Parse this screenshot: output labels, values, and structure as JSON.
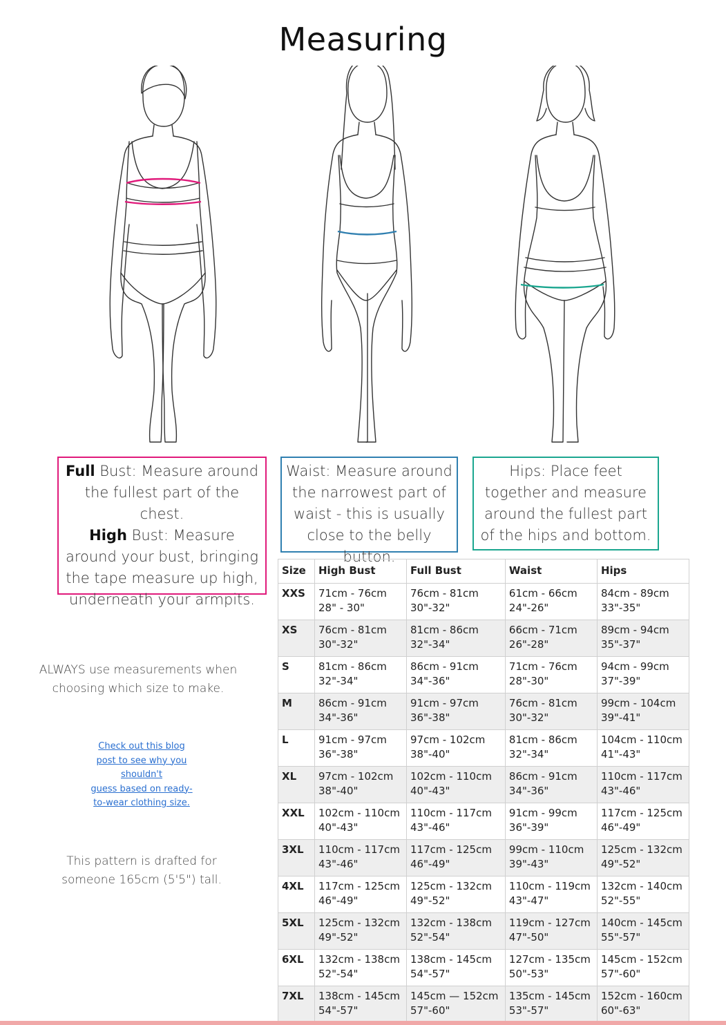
{
  "title": "Measuring",
  "callouts": {
    "bust": {
      "full_bold": "Full",
      "full_text": " Bust: Measure around the fullest part of the chest.",
      "high_bold": "High",
      "high_text": " Bust: Measure around your bust, bringing the tape measure up high, underneath your armpits."
    },
    "waist": "Waist: Measure around the narrowest part of waist - this is usually close to the belly button.",
    "hips": "Hips: Place feet together and measure around the fullest part of the hips and bottom."
  },
  "notes": {
    "always": "ALWAYS use measurements when choosing which size to make.",
    "link_lines": [
      "Check out this blog",
      "post to see why you",
      "shouldn't",
      "guess based on ready-",
      "to-wear clothing size."
    ],
    "drafted": "This pattern is drafted for someone 165cm (5'5\") tall."
  },
  "colors": {
    "bust": "#e0197a",
    "waist": "#2f7fb0",
    "hips": "#1aa68f"
  },
  "table": {
    "headers": [
      "Size",
      "High Bust",
      "Full Bust",
      "Waist",
      "Hips"
    ],
    "rows": [
      {
        "size": "XXS",
        "high_cm": "71cm - 76cm",
        "high_in": "28\" - 30\"",
        "full_cm": "76cm - 81cm",
        "full_in": "30\"-32\"",
        "waist_cm": "61cm - 66cm",
        "waist_in": "24\"-26\"",
        "hips_cm": "84cm - 89cm",
        "hips_in": "33\"-35\""
      },
      {
        "size": "XS",
        "high_cm": "76cm - 81cm",
        "high_in": "30\"-32\"",
        "full_cm": "81cm - 86cm",
        "full_in": "32\"-34\"",
        "waist_cm": "66cm - 71cm",
        "waist_in": "26\"-28\"",
        "hips_cm": "89cm - 94cm",
        "hips_in": "35\"-37\""
      },
      {
        "size": "S",
        "high_cm": "81cm - 86cm",
        "high_in": "32\"-34\"",
        "full_cm": "86cm - 91cm",
        "full_in": "34\"-36\"",
        "waist_cm": "71cm - 76cm",
        "waist_in": "28\"-30\"",
        "hips_cm": "94cm - 99cm",
        "hips_in": "37\"-39\""
      },
      {
        "size": "M",
        "high_cm": "86cm - 91cm",
        "high_in": "34\"-36\"",
        "full_cm": "91cm - 97cm",
        "full_in": "36\"-38\"",
        "waist_cm": "76cm - 81cm",
        "waist_in": "30\"-32\"",
        "hips_cm": "99cm - 104cm",
        "hips_in": "39\"-41\""
      },
      {
        "size": "L",
        "high_cm": "91cm - 97cm",
        "high_in": "36\"-38\"",
        "full_cm": "97cm - 102cm",
        "full_in": "38\"-40\"",
        "waist_cm": "81cm - 86cm",
        "waist_in": "32\"-34\"",
        "hips_cm": "104cm - 110cm",
        "hips_in": "41\"-43\""
      },
      {
        "size": "XL",
        "high_cm": "97cm - 102cm",
        "high_in": "38\"-40\"",
        "full_cm": "102cm - 110cm",
        "full_in": "40\"-43\"",
        "waist_cm": "86cm - 91cm",
        "waist_in": "34\"-36\"",
        "hips_cm": "110cm - 117cm",
        "hips_in": "43\"-46\""
      },
      {
        "size": "XXL",
        "high_cm": "102cm - 110cm",
        "high_in": "40\"-43\"",
        "full_cm": "110cm - 117cm",
        "full_in": "43\"-46\"",
        "waist_cm": "91cm - 99cm",
        "waist_in": "36\"-39\"",
        "hips_cm": "117cm - 125cm",
        "hips_in": "46\"-49\""
      },
      {
        "size": "3XL",
        "high_cm": "110cm - 117cm",
        "high_in": "43\"-46\"",
        "full_cm": "117cm - 125cm",
        "full_in": "46\"-49\"",
        "waist_cm": "99cm - 110cm",
        "waist_in": "39\"-43\"",
        "hips_cm": "125cm - 132cm",
        "hips_in": "49\"-52\""
      },
      {
        "size": "4XL",
        "high_cm": "117cm - 125cm",
        "high_in": "46\"-49\"",
        "full_cm": "125cm - 132cm",
        "full_in": "49\"-52\"",
        "waist_cm": "110cm - 119cm",
        "waist_in": "43\"-47\"",
        "hips_cm": "132cm - 140cm",
        "hips_in": "52\"-55\""
      },
      {
        "size": "5XL",
        "high_cm": "125cm - 132cm",
        "high_in": "49\"-52\"",
        "full_cm": "132cm - 138cm",
        "full_in": "52\"-54\"",
        "waist_cm": "119cm - 127cm",
        "waist_in": "47\"-50\"",
        "hips_cm": "140cm - 145cm",
        "hips_in": "55\"-57\""
      },
      {
        "size": "6XL",
        "high_cm": "132cm - 138cm",
        "high_in": "52\"-54\"",
        "full_cm": "138cm - 145cm",
        "full_in": "54\"-57\"",
        "waist_cm": "127cm - 135cm",
        "waist_in": "50\"-53\"",
        "hips_cm": "145cm - 152cm",
        "hips_in": "57\"-60\""
      },
      {
        "size": "7XL",
        "high_cm": "138cm - 145cm",
        "high_in": "54\"-57\"",
        "full_cm": "145cm — 152cm",
        "full_in": "57\"-60\"",
        "waist_cm": "135cm - 145cm",
        "waist_in": "53\"-57\"",
        "hips_cm": "152cm - 160cm",
        "hips_in": "60\"-63\""
      }
    ]
  }
}
